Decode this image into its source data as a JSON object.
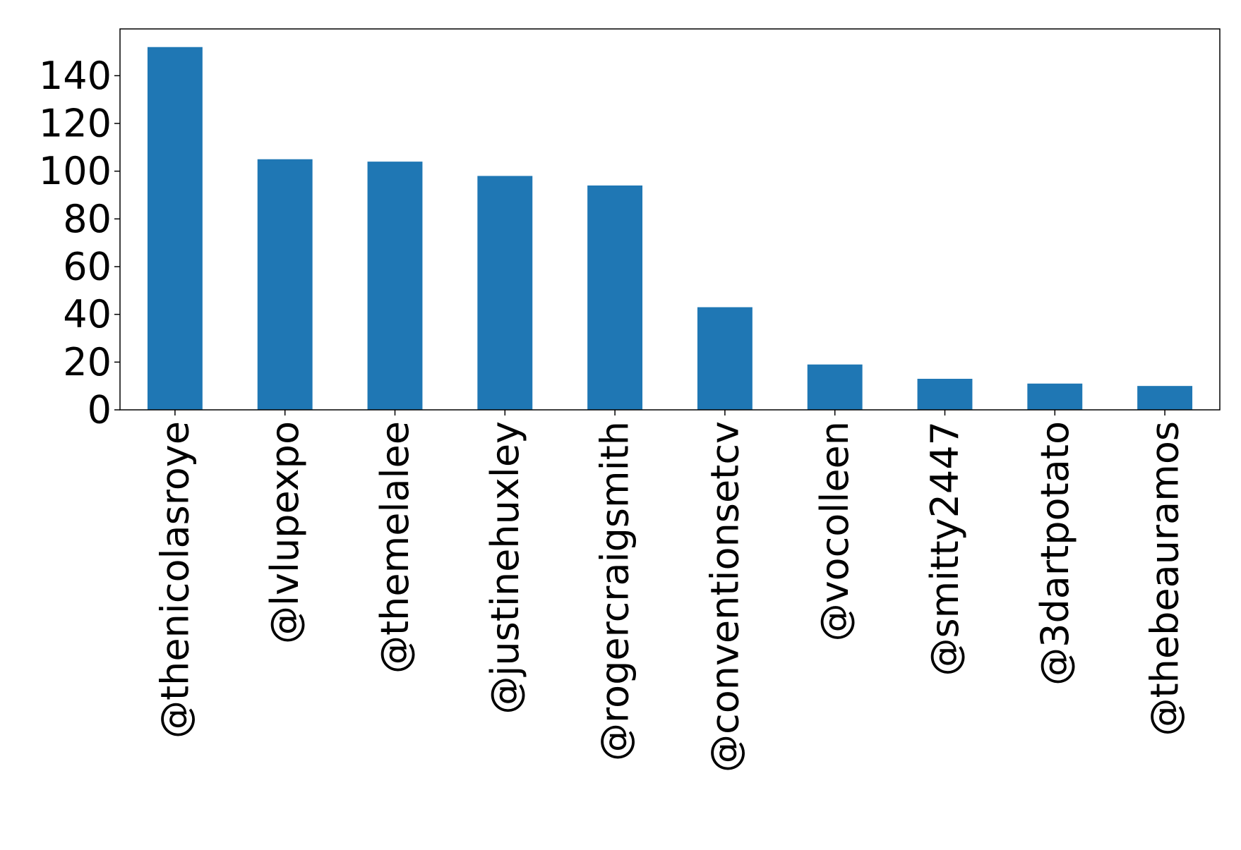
{
  "chart_data": {
    "type": "bar",
    "categories": [
      "@thenicolasroye",
      "@lvlupexpo",
      "@themelalee",
      "@justinehuxley",
      "@rogercraigsmith",
      "@conventionsetcv",
      "@vocolleen",
      "@smitty2447",
      "@3dartpotato",
      "@thebeauramos"
    ],
    "values": [
      152,
      105,
      104,
      98,
      94,
      43,
      19,
      13,
      11,
      10
    ],
    "color": "#1f77b4",
    "ylim": [
      0,
      159.6
    ],
    "yticks": [
      0,
      20,
      40,
      60,
      80,
      100,
      120,
      140
    ],
    "grid": false
  }
}
